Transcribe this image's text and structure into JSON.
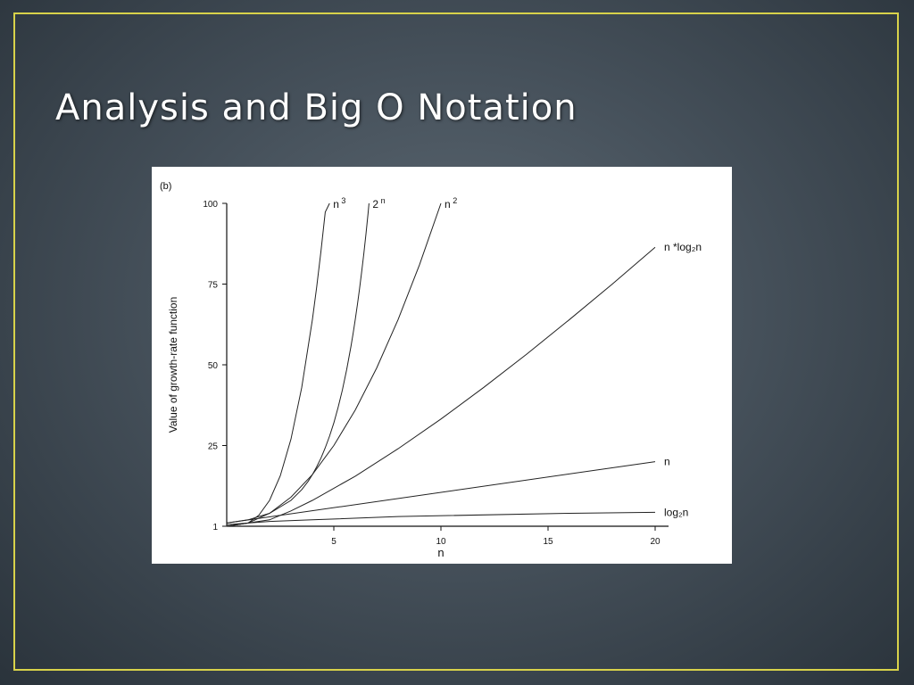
{
  "slide": {
    "title": "Analysis and Big O Notation",
    "frame_color": "#d8d24a"
  },
  "chart_data": {
    "type": "line",
    "panel_label": "(b)",
    "xlabel": "n",
    "ylabel": "Value of growth-rate function",
    "xlim": [
      0,
      20
    ],
    "ylim": [
      0,
      100
    ],
    "x_ticks": [
      5,
      10,
      15,
      20
    ],
    "y_ticks": [
      1,
      25,
      50,
      75,
      100
    ],
    "grid": false,
    "series": [
      {
        "name": "2",
        "superscript": "n",
        "base": "",
        "x": [
          0,
          1,
          2,
          3,
          3.5,
          3.8,
          4.0,
          4.2,
          4.4,
          4.6,
          4.8,
          5.0,
          5.2,
          5.4,
          5.6,
          5.8,
          5.9,
          6.0,
          6.1,
          6.2,
          6.3,
          6.4,
          6.5,
          6.6,
          6.64
        ],
        "y": [
          1,
          2,
          4,
          8,
          11.3,
          13.9,
          16,
          18.4,
          21.1,
          24.3,
          27.9,
          32,
          36.8,
          42.2,
          48.5,
          55.7,
          59.7,
          64,
          68.6,
          73.5,
          78.8,
          84.4,
          90.5,
          97,
          100
        ]
      },
      {
        "name": "n",
        "superscript": "3",
        "base": "",
        "x": [
          0,
          1,
          1.5,
          2,
          2.5,
          3,
          3.5,
          4,
          4.2,
          4.4,
          4.6,
          4.8,
          5.0,
          5.2,
          5.4,
          5.6,
          5.8,
          6.0,
          6.2,
          6.4,
          6.6,
          6.8,
          7.0,
          7.2,
          7.4,
          7.6,
          7.8,
          8.0,
          8.2,
          8.4,
          8.6,
          8.8,
          9.0,
          9.2,
          9.4,
          9.6,
          9.8,
          10.0
        ],
        "y": [
          0.5,
          1,
          3.4,
          8,
          15.6,
          27,
          42.9,
          64,
          74.1,
          85.2,
          97.3,
          100,
          100,
          100,
          100,
          100,
          100,
          100,
          100,
          100,
          100,
          100,
          100,
          100,
          100,
          100,
          100,
          100,
          100,
          100,
          100,
          100,
          100,
          100,
          100,
          100,
          100,
          100
        ]
      },
      {
        "name": "n",
        "superscript": "2",
        "base": "",
        "x": [
          0,
          1,
          2,
          3,
          4,
          5,
          6,
          7,
          8,
          9,
          10
        ],
        "y": [
          0,
          1,
          4,
          9,
          16,
          25,
          36,
          49,
          64,
          81,
          100
        ]
      },
      {
        "name": "n *log₂n",
        "superscript": "",
        "base": "",
        "x": [
          1,
          2,
          3,
          4,
          6,
          8,
          10,
          12,
          14,
          16,
          18,
          20
        ],
        "y": [
          1,
          2,
          4.75,
          8,
          15.5,
          24,
          33.2,
          43,
          53.3,
          64,
          75,
          86.4
        ]
      },
      {
        "name": "n",
        "superscript": "",
        "base": "",
        "x": [
          0,
          20
        ],
        "y": [
          1,
          20
        ]
      },
      {
        "name": "log₂n",
        "superscript": "",
        "base": "",
        "x": [
          1,
          2,
          4,
          8,
          16,
          20
        ],
        "y": [
          1,
          1.5,
          2,
          3,
          4,
          4.3
        ]
      }
    ]
  }
}
